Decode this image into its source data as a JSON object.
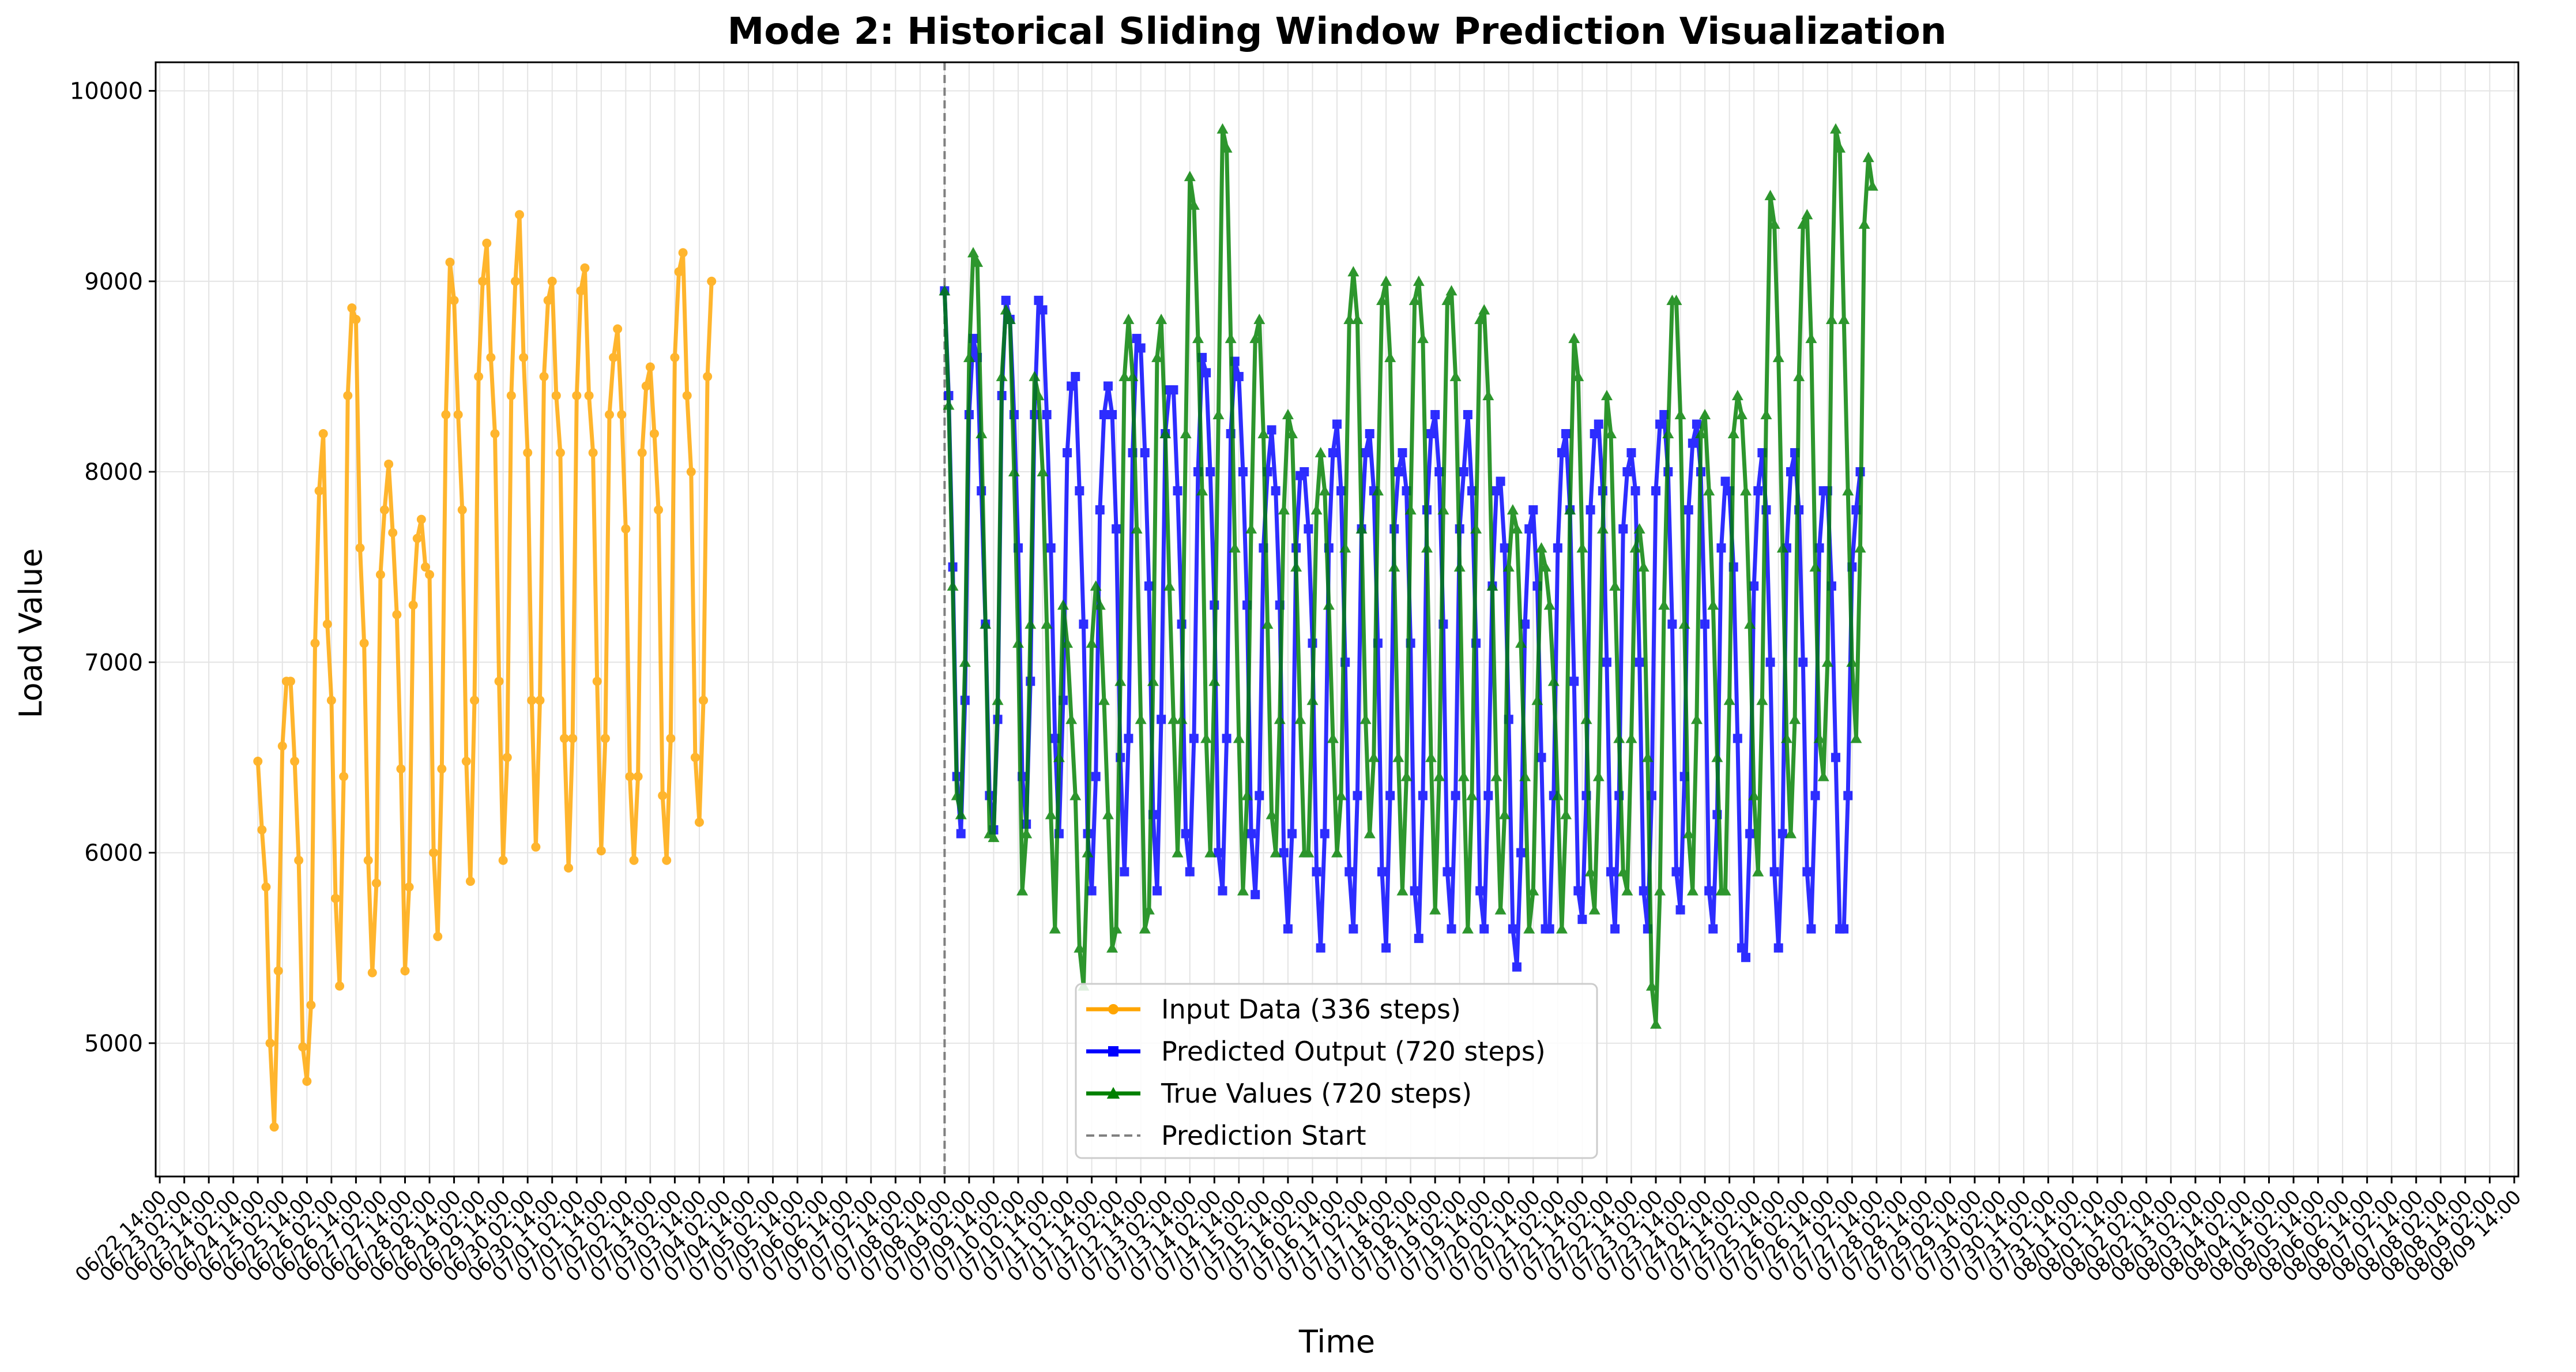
{
  "chart_data": {
    "type": "line",
    "title": "Mode 2: Historical Sliding Window Prediction Visualization",
    "xlabel": "Time",
    "ylabel": "Load Value",
    "ylim": [
      4300,
      10150
    ],
    "yticks": [
      5000,
      6000,
      7000,
      8000,
      9000,
      10000
    ],
    "grid": true,
    "legend_position": "bottom-center",
    "x_axis": {
      "start": "06/22 14:00",
      "step_hours": 12,
      "ticks": [
        "06/22 14:00",
        "06/23 02:00",
        "06/23 14:00",
        "06/24 02:00",
        "06/24 14:00",
        "06/25 02:00",
        "06/25 14:00",
        "06/26 02:00",
        "06/26 14:00",
        "06/27 02:00",
        "06/27 14:00",
        "06/28 02:00",
        "06/28 14:00",
        "06/29 02:00",
        "06/29 14:00",
        "06/30 02:00",
        "06/30 14:00",
        "07/01 02:00",
        "07/01 14:00",
        "07/02 02:00",
        "07/02 14:00",
        "07/03 02:00",
        "07/03 14:00",
        "07/04 02:00",
        "07/04 14:00",
        "07/05 02:00",
        "07/05 14:00",
        "07/06 02:00",
        "07/06 14:00",
        "07/07 02:00",
        "07/07 14:00",
        "07/08 02:00",
        "07/08 14:00",
        "07/09 02:00",
        "07/09 14:00",
        "07/10 02:00",
        "07/10 14:00",
        "07/11 02:00",
        "07/11 14:00",
        "07/12 02:00",
        "07/12 14:00",
        "07/13 02:00",
        "07/13 14:00",
        "07/14 02:00",
        "07/14 14:00",
        "07/15 02:00",
        "07/15 14:00",
        "07/16 02:00",
        "07/16 14:00",
        "07/17 02:00",
        "07/17 14:00",
        "07/18 02:00",
        "07/18 14:00",
        "07/19 02:00",
        "07/19 14:00",
        "07/20 02:00",
        "07/20 14:00",
        "07/21 02:00",
        "07/21 14:00",
        "07/22 02:00",
        "07/22 14:00",
        "07/23 02:00",
        "07/23 14:00",
        "07/24 02:00",
        "07/24 14:00",
        "07/25 02:00",
        "07/25 14:00",
        "07/26 02:00",
        "07/26 14:00",
        "07/27 02:00",
        "07/27 14:00",
        "07/28 02:00",
        "07/28 14:00",
        "07/29 02:00",
        "07/29 14:00",
        "07/30 02:00",
        "07/30 14:00",
        "07/31 02:00",
        "07/31 14:00",
        "08/01 02:00",
        "08/01 14:00",
        "08/02 02:00",
        "08/02 14:00",
        "08/03 02:00",
        "08/03 14:00",
        "08/04 02:00",
        "08/04 14:00",
        "08/05 02:00",
        "08/05 14:00",
        "08/06 02:00",
        "08/06 14:00",
        "08/07 02:00",
        "08/07 14:00",
        "08/08 02:00",
        "08/08 14:00",
        "08/09 02:00",
        "08/09 14:00"
      ]
    },
    "prediction_start": {
      "label": "Prediction Start",
      "at": "07/08 14:00",
      "color": "#808080"
    },
    "series": [
      {
        "name": "Input Data (336 steps)",
        "color": "#FFA500",
        "marker": "circle",
        "start": "06/24 14:00",
        "x_step_hours": 2,
        "points": [
          6480,
          6120,
          5820,
          5000,
          4560,
          5380,
          6560,
          6900,
          6900,
          6480,
          5960,
          4980,
          4800,
          5200,
          7100,
          7900,
          8200,
          7200,
          6800,
          5760,
          5300,
          6400,
          8400,
          8860,
          8800,
          7600,
          7100,
          5960,
          5370,
          5840,
          7460,
          7800,
          8040,
          7680,
          7250,
          6440,
          5380,
          5820,
          7300,
          7650,
          7750,
          7500,
          7460,
          6000,
          5560,
          6440,
          8300,
          9100,
          8900,
          8300,
          7800,
          6480,
          5850,
          6800,
          8500,
          9000,
          9200,
          8600,
          8200,
          6900,
          5960,
          6500,
          8400,
          9000,
          9350,
          8600,
          8100,
          6800,
          6030,
          6800,
          8500,
          8900,
          9000,
          8400,
          8100,
          6600,
          5920,
          6600,
          8400,
          8950,
          9070,
          8400,
          8100,
          6900,
          6010,
          6600,
          8300,
          8600,
          8750,
          8300,
          7700,
          6400,
          5960,
          6400,
          8100,
          8450,
          8550,
          8200,
          7800,
          6300,
          5960,
          6600,
          8600,
          9050,
          9150,
          8400,
          8000,
          6500,
          6160,
          6800,
          8500,
          9000
        ]
      },
      {
        "name": "Predicted Output (720 steps)",
        "color": "#0000FF",
        "marker": "square",
        "start": "07/08 14:00",
        "x_step_hours": 2,
        "points": [
          8950,
          8400,
          7500,
          6400,
          6100,
          6800,
          8300,
          8700,
          8600,
          7900,
          7200,
          6300,
          6120,
          6700,
          8400,
          8900,
          8800,
          8300,
          7600,
          6400,
          6150,
          6900,
          8300,
          8900,
          8850,
          8300,
          7600,
          6600,
          6100,
          6800,
          8100,
          8450,
          8500,
          7900,
          7200,
          6100,
          5800,
          6400,
          7800,
          8300,
          8450,
          8300,
          7700,
          6500,
          5900,
          6600,
          8100,
          8700,
          8650,
          8100,
          7400,
          6200,
          5800,
          6700,
          8200,
          8430,
          8430,
          7900,
          7200,
          6100,
          5900,
          6600,
          8000,
          8600,
          8520,
          8000,
          7300,
          6000,
          5800,
          6600,
          8200,
          8580,
          8500,
          8000,
          7300,
          6100,
          5780,
          6300,
          7600,
          8000,
          8220,
          7900,
          7300,
          6000,
          5600,
          6100,
          7600,
          7980,
          8000,
          7700,
          7100,
          5900,
          5500,
          6100,
          7600,
          8100,
          8250,
          7900,
          7000,
          5900,
          5600,
          6300,
          7700,
          8100,
          8200,
          7900,
          7100,
          5900,
          5500,
          6300,
          7700,
          8000,
          8100,
          7900,
          7100,
          5800,
          5550,
          6300,
          7800,
          8200,
          8300,
          8000,
          7200,
          5900,
          5600,
          6300,
          7700,
          8000,
          8300,
          7900,
          7100,
          5800,
          5600,
          6300,
          7400,
          7900,
          7950,
          7600,
          6700,
          5600,
          5400,
          6000,
          7200,
          7700,
          7800,
          7400,
          6500,
          5600,
          5600,
          6300,
          7600,
          8100,
          8200,
          7800,
          6900,
          5800,
          5650,
          6300,
          7800,
          8200,
          8250,
          7900,
          7000,
          5900,
          5600,
          6300,
          7700,
          8000,
          8100,
          7900,
          7000,
          5800,
          5600,
          6300,
          7900,
          8250,
          8300,
          8000,
          7200,
          5900,
          5700,
          6400,
          7800,
          8150,
          8250,
          8000,
          7200,
          5800,
          5600,
          6200,
          7600,
          7950,
          7900,
          7500,
          6600,
          5500,
          5450,
          6100,
          7400,
          7900,
          8100,
          7800,
          7000,
          5900,
          5500,
          6100,
          7600,
          8000,
          8100,
          7800,
          7000,
          5900,
          5600,
          6300,
          7600,
          7900,
          7900,
          7400,
          6500,
          5600,
          5600,
          6300,
          7500,
          7800,
          8000
        ]
      },
      {
        "name": "True Values (720 steps)",
        "color": "#008000",
        "marker": "triangle",
        "start": "07/08 14:00",
        "x_step_hours": 2,
        "points": [
          8950,
          8350,
          7400,
          6300,
          6200,
          7000,
          8600,
          9150,
          9100,
          8200,
          7200,
          6100,
          6080,
          6800,
          8500,
          8850,
          8800,
          8000,
          7100,
          5800,
          6100,
          7200,
          8500,
          8400,
          8000,
          7200,
          6200,
          5600,
          6500,
          7300,
          7100,
          6700,
          6300,
          5500,
          5300,
          6000,
          7100,
          7400,
          7300,
          6800,
          6200,
          5500,
          5600,
          6900,
          8500,
          8800,
          8500,
          7700,
          6700,
          5600,
          5700,
          6900,
          8600,
          8800,
          8200,
          7400,
          6700,
          6000,
          6700,
          8200,
          9550,
          9400,
          8700,
          7900,
          6600,
          6000,
          6900,
          8300,
          9800,
          9700,
          8700,
          7600,
          6600,
          5800,
          6300,
          7700,
          8700,
          8800,
          8200,
          7200,
          6200,
          6000,
          6700,
          7800,
          8300,
          8200,
          7500,
          6700,
          6000,
          6000,
          6800,
          7800,
          8100,
          7900,
          7300,
          6600,
          6000,
          6300,
          7600,
          8800,
          9050,
          8800,
          7700,
          6700,
          6100,
          6500,
          7900,
          8900,
          9000,
          8600,
          7500,
          6500,
          5800,
          6400,
          7800,
          8900,
          9000,
          8700,
          7600,
          6500,
          5700,
          6400,
          7800,
          8900,
          8950,
          8500,
          7500,
          6400,
          5600,
          6300,
          7700,
          8800,
          8850,
          8400,
          7400,
          6400,
          5700,
          6200,
          7500,
          7800,
          7700,
          7100,
          6400,
          5600,
          5800,
          6800,
          7600,
          7500,
          7300,
          6900,
          6300,
          5600,
          6200,
          7800,
          8700,
          8500,
          7600,
          6700,
          5900,
          5700,
          6400,
          7700,
          8400,
          8200,
          7400,
          6600,
          5900,
          5800,
          6600,
          7600,
          7700,
          7500,
          6500,
          5300,
          5100,
          5800,
          7300,
          8200,
          8900,
          8900,
          8300,
          7200,
          6100,
          5800,
          6700,
          8200,
          8300,
          7900,
          7300,
          6500,
          5800,
          5800,
          6800,
          8200,
          8400,
          8300,
          7900,
          7200,
          6300,
          5900,
          6800,
          8300,
          9450,
          9300,
          8600,
          7600,
          6600,
          6100,
          6700,
          8500,
          9300,
          9350,
          8700,
          7500,
          6600,
          6400,
          7000,
          8800,
          9800,
          9700,
          8800,
          7900,
          7000,
          6600,
          7600,
          9300,
          9650,
          9500
        ]
      }
    ],
    "legend": [
      {
        "label": "Input Data (336 steps)",
        "color": "#FFA500",
        "marker": "circle",
        "style": "solid"
      },
      {
        "label": "Predicted Output (720 steps)",
        "color": "#0000FF",
        "marker": "square",
        "style": "solid"
      },
      {
        "label": "True Values (720 steps)",
        "color": "#008000",
        "marker": "triangle",
        "style": "solid"
      },
      {
        "label": "Prediction Start",
        "color": "#808080",
        "marker": "none",
        "style": "dashed"
      }
    ]
  }
}
